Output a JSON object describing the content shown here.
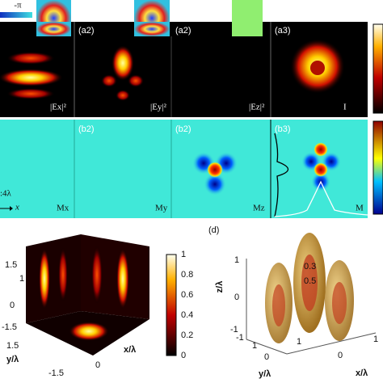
{
  "top": {
    "phase_label": "-π"
  },
  "row_a": {
    "tags": [
      "(a2)",
      "(a2)",
      "(a3)"
    ],
    "labels": [
      "|Ex|²",
      "|Ey|²",
      "|Ez|²",
      "I"
    ]
  },
  "row_b": {
    "tags": [
      "(b2)",
      "(b2)",
      "(b3)"
    ],
    "labels": [
      "Mx",
      "My",
      "Mz",
      "M"
    ],
    "scale": ":4λ",
    "axis": "x"
  },
  "panel_c": {
    "colorbar_ticks": [
      "1",
      "0.8",
      "0.6",
      "0.4",
      "0.2",
      "0"
    ],
    "y_ticks": [
      "1.5",
      "1",
      "0",
      "-1.5"
    ],
    "y_label": "y/λ",
    "bottom_ticks": [
      "1.5",
      "0",
      "-1.5"
    ],
    "x_label": "x/λ"
  },
  "panel_d": {
    "tag": "(d)",
    "z_label": "z/λ",
    "z_ticks": [
      "1",
      "0",
      "-1",
      "-1"
    ],
    "contours": [
      "0.3",
      "0.5"
    ],
    "y_ticks": [
      "1",
      "0"
    ],
    "y_label": "y/λ",
    "x_ticks": [
      "0",
      "1",
      "1"
    ],
    "x_label": "x/λ"
  }
}
